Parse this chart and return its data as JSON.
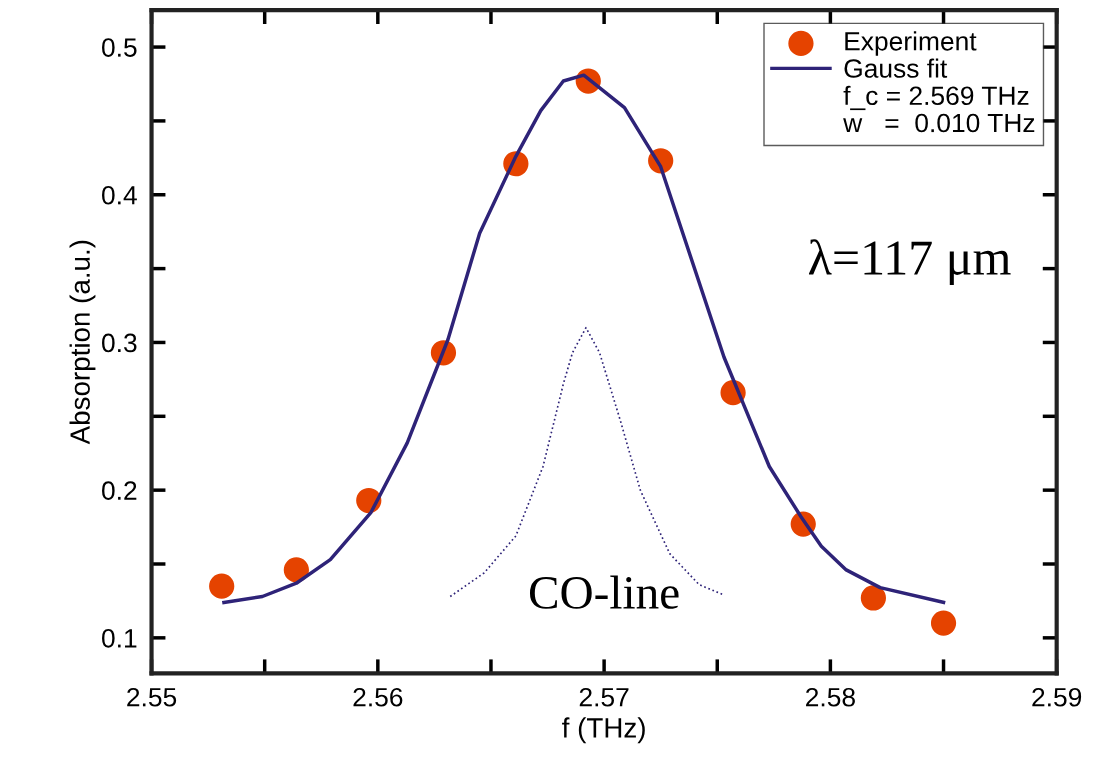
{
  "chart_data": {
    "type": "scatter",
    "xlabel": "f (THz)",
    "ylabel": "Absorption (a.u.)",
    "xlim": [
      2.55,
      2.59
    ],
    "ylim": [
      0.076,
      0.525
    ],
    "xticks": [
      2.55,
      {
        "value": 2.555,
        "label": null
      },
      2.56,
      {
        "value": 2.565,
        "label": null
      },
      2.57,
      {
        "value": 2.575,
        "label": null
      },
      2.58,
      {
        "value": 2.585,
        "label": null
      },
      2.59
    ],
    "yticks": [
      0.1,
      {
        "value": 0.15,
        "label": null
      },
      0.2,
      {
        "value": 0.25,
        "label": null
      },
      0.3,
      {
        "value": 0.35,
        "label": null
      },
      0.4,
      {
        "value": 0.45,
        "label": null
      },
      0.5
    ],
    "grid": false,
    "legend": "top right",
    "series": [
      {
        "name": "Experiment",
        "marker": "circle",
        "color": "#e54300",
        "x": [
          2.5531,
          2.5564,
          2.5596,
          2.5629,
          2.5661,
          2.5693,
          2.5725,
          2.5757,
          2.5788,
          2.5819,
          2.585
        ],
        "values": [
          0.135,
          0.146,
          0.193,
          0.293,
          0.421,
          0.477,
          0.423,
          0.266,
          0.177,
          0.127,
          0.11
        ]
      },
      {
        "name": "Gauss fit",
        "type": "line",
        "line_style": "solid",
        "color": "#2e2378",
        "x": [
          2.5532,
          2.5549,
          2.5564,
          2.5579,
          2.5597,
          2.5613,
          2.5631,
          2.5645,
          2.5661,
          2.5672,
          2.5682,
          2.5691,
          2.5709,
          2.5725,
          2.5753,
          2.5773,
          2.5787,
          2.5796,
          2.5807,
          2.5822,
          2.585
        ],
        "values": [
          0.124,
          0.128,
          0.137,
          0.153,
          0.185,
          0.232,
          0.302,
          0.374,
          0.426,
          0.457,
          0.477,
          0.481,
          0.459,
          0.419,
          0.29,
          0.216,
          0.182,
          0.162,
          0.146,
          0.134,
          0.124
        ]
      },
      {
        "type": "line",
        "line_style": "dotted",
        "color": "#2e2378",
        "x": [
          2.5632,
          2.5647,
          2.5661,
          2.5673,
          2.5682,
          2.5686,
          2.5692,
          2.5698,
          2.5707,
          2.5716,
          2.5729,
          2.5742,
          2.5753
        ],
        "values": [
          0.128,
          0.144,
          0.169,
          0.216,
          0.272,
          0.293,
          0.31,
          0.293,
          0.248,
          0.2,
          0.157,
          0.136,
          0.129
        ]
      }
    ],
    "annotations": [
      "f_c = 2.569 THz",
      "w   =  0.010 THz",
      "λ=117 μm",
      "CO-line"
    ]
  }
}
